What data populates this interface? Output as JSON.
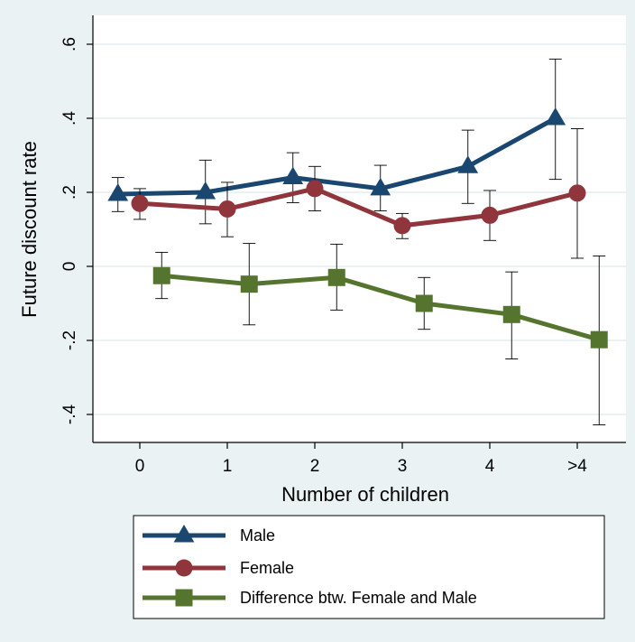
{
  "chart_data": {
    "type": "line",
    "xlabel": "Number of children",
    "ylabel": "Future discount rate",
    "categories": [
      "0",
      "1",
      "2",
      "3",
      "4",
      ">4"
    ],
    "ylim": [
      -0.48,
      0.62
    ],
    "y_ticks": [
      {
        "value": 0.6,
        "label": ".6"
      },
      {
        "value": 0.4,
        "label": ".4"
      },
      {
        "value": 0.2,
        "label": ".2"
      },
      {
        "value": 0.0,
        "label": "0"
      },
      {
        "value": -0.2,
        "label": "-.2"
      },
      {
        "value": -0.4,
        "label": "-.4"
      }
    ],
    "grid": true,
    "legend_position": "bottom",
    "series": [
      {
        "name": "Male",
        "color": "#1a476f",
        "marker": "triangle",
        "x": [
          -0.25,
          0.75,
          1.75,
          2.75,
          3.75,
          4.75
        ],
        "values": [
          0.195,
          0.2,
          0.24,
          0.21,
          0.27,
          0.4
        ],
        "ci_low": [
          0.148,
          0.115,
          0.172,
          0.15,
          0.17,
          0.235
        ],
        "ci_high": [
          0.24,
          0.287,
          0.307,
          0.273,
          0.368,
          0.56
        ]
      },
      {
        "name": "Female",
        "color": "#90353b",
        "marker": "circle",
        "x": [
          0,
          1,
          2,
          3,
          4,
          5
        ],
        "values": [
          0.17,
          0.155,
          0.21,
          0.11,
          0.138,
          0.198
        ],
        "ci_low": [
          0.127,
          0.08,
          0.15,
          0.075,
          0.07,
          0.022
        ],
        "ci_high": [
          0.21,
          0.227,
          0.27,
          0.143,
          0.205,
          0.372
        ]
      },
      {
        "name": "Difference btw. Female and Male",
        "color": "#55752f",
        "marker": "square",
        "x": [
          0.25,
          1.25,
          2.25,
          3.25,
          4.25,
          5.25
        ],
        "values": [
          -0.025,
          -0.048,
          -0.03,
          -0.1,
          -0.13,
          -0.198
        ],
        "ci_low": [
          -0.087,
          -0.158,
          -0.118,
          -0.17,
          -0.25,
          -0.428
        ],
        "ci_high": [
          0.038,
          0.062,
          0.06,
          -0.03,
          -0.015,
          0.028
        ]
      }
    ]
  }
}
